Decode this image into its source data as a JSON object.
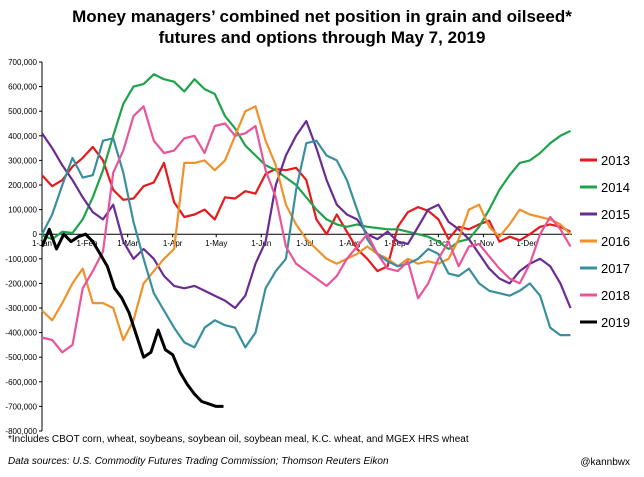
{
  "chart_data": {
    "type": "line",
    "title_lines": [
      "Money managers’ combined net position in grain and oilseed*",
      "futures and options through May 7, 2019"
    ],
    "footnote": "*Includes CBOT corn, wheat, soybeans, soybean oil, soybean meal, K.C. wheat, and MGEX HRS wheat",
    "sources": "Data sources: U.S. Commodity Futures Trading Commission; Thomson Reuters Eikon",
    "handle": "@kannbwx",
    "xlabel": "",
    "ylabel": "",
    "x_ticks": [
      "1-Jan",
      "1-Feb",
      "1-Mar",
      "1-Apr",
      "1-May",
      "1-Jun",
      "1-Jul",
      "1-Aug",
      "1-Sep",
      "1-Oct",
      "1-Nov",
      "1-Dec"
    ],
    "x_range": [
      0,
      365
    ],
    "y_ticks": [
      "700,000",
      "600,000",
      "500,000",
      "400,000",
      "300,000",
      "200,000",
      "100,000",
      "0",
      "-100,000",
      "-200,000",
      "-300,000",
      "-400,000",
      "-500,000",
      "-600,000",
      "-700,000",
      "-800,000"
    ],
    "ylim": [
      -800000,
      700000
    ],
    "legend_position": "right",
    "grid": false,
    "series": [
      {
        "name": "2013",
        "color": "#e41a1c",
        "x": [
          0,
          7,
          14,
          21,
          28,
          35,
          42,
          49,
          56,
          63,
          70,
          77,
          84,
          91,
          98,
          105,
          112,
          119,
          126,
          133,
          140,
          147,
          154,
          161,
          168,
          175,
          182,
          189,
          196,
          203,
          210,
          217,
          224,
          231,
          238,
          245,
          252,
          259,
          266,
          273,
          280,
          287,
          294,
          301,
          308,
          315,
          322,
          329,
          336,
          343,
          350,
          357,
          364
        ],
        "y": [
          240000,
          195000,
          220000,
          275000,
          310000,
          355000,
          300000,
          180000,
          140000,
          145000,
          195000,
          210000,
          290000,
          130000,
          70000,
          80000,
          100000,
          60000,
          150000,
          145000,
          175000,
          165000,
          245000,
          265000,
          260000,
          270000,
          220000,
          60000,
          0,
          80000,
          10000,
          -60000,
          -100000,
          -150000,
          -130000,
          30000,
          90000,
          110000,
          95000,
          60000,
          -20000,
          30000,
          20000,
          40000,
          55000,
          -30000,
          -10000,
          -25000,
          0,
          30000,
          40000,
          30000,
          10000
        ]
      },
      {
        "name": "2014",
        "color": "#1fa34a",
        "x": [
          0,
          7,
          14,
          21,
          28,
          35,
          42,
          49,
          56,
          63,
          70,
          77,
          84,
          91,
          98,
          105,
          112,
          119,
          126,
          133,
          140,
          147,
          154,
          161,
          168,
          175,
          182,
          189,
          196,
          203,
          210,
          217,
          224,
          231,
          238,
          245,
          252,
          259,
          266,
          273,
          280,
          287,
          294,
          301,
          308,
          315,
          322,
          329,
          336,
          343,
          350,
          357,
          364
        ],
        "y": [
          -5000,
          -20000,
          10000,
          5000,
          60000,
          150000,
          260000,
          400000,
          530000,
          600000,
          610000,
          650000,
          630000,
          620000,
          580000,
          630000,
          590000,
          570000,
          480000,
          430000,
          360000,
          320000,
          280000,
          260000,
          230000,
          200000,
          150000,
          100000,
          60000,
          40000,
          30000,
          40000,
          30000,
          25000,
          20000,
          20000,
          10000,
          0,
          -10000,
          -30000,
          -60000,
          -30000,
          -20000,
          30000,
          100000,
          180000,
          240000,
          290000,
          300000,
          330000,
          370000,
          400000,
          420000
        ]
      },
      {
        "name": "2015",
        "color": "#6a2c91",
        "x": [
          0,
          7,
          14,
          21,
          28,
          35,
          42,
          49,
          56,
          63,
          70,
          77,
          84,
          91,
          98,
          105,
          112,
          119,
          126,
          133,
          140,
          147,
          154,
          161,
          168,
          175,
          182,
          189,
          196,
          203,
          210,
          217,
          224,
          231,
          238,
          245,
          252,
          259,
          266,
          273,
          280,
          287,
          294,
          301,
          308,
          315,
          322,
          329,
          336,
          343,
          350,
          357,
          364
        ],
        "y": [
          410000,
          350000,
          280000,
          220000,
          150000,
          90000,
          60000,
          120000,
          -30000,
          -100000,
          -60000,
          -100000,
          -170000,
          -210000,
          -220000,
          -210000,
          -230000,
          -250000,
          -270000,
          -300000,
          -250000,
          -120000,
          -30000,
          200000,
          320000,
          400000,
          460000,
          350000,
          220000,
          120000,
          80000,
          60000,
          0,
          -20000,
          10000,
          -30000,
          -40000,
          30000,
          100000,
          120000,
          50000,
          20000,
          -20000,
          -80000,
          -140000,
          -180000,
          -200000,
          -150000,
          -120000,
          -100000,
          -130000,
          -200000,
          -300000
        ]
      },
      {
        "name": "2016",
        "color": "#f0922b",
        "x": [
          0,
          7,
          14,
          21,
          28,
          35,
          42,
          49,
          56,
          63,
          70,
          77,
          84,
          91,
          98,
          105,
          112,
          119,
          126,
          133,
          140,
          147,
          154,
          161,
          168,
          175,
          182,
          189,
          196,
          203,
          210,
          217,
          224,
          231,
          238,
          245,
          252,
          259,
          266,
          273,
          280,
          287,
          294,
          301,
          308,
          315,
          322,
          329,
          336,
          343,
          350,
          357,
          364
        ],
        "y": [
          -310000,
          -350000,
          -280000,
          -200000,
          -140000,
          -280000,
          -280000,
          -300000,
          -430000,
          -350000,
          -200000,
          -150000,
          -100000,
          -60000,
          290000,
          290000,
          300000,
          260000,
          300000,
          400000,
          500000,
          520000,
          380000,
          280000,
          120000,
          40000,
          -20000,
          -60000,
          -100000,
          -120000,
          -100000,
          -80000,
          -50000,
          -80000,
          -100000,
          -130000,
          -100000,
          -120000,
          -110000,
          -120000,
          -100000,
          -20000,
          100000,
          120000,
          30000,
          -10000,
          40000,
          100000,
          80000,
          70000,
          60000,
          40000,
          0
        ]
      },
      {
        "name": "2017",
        "color": "#3a8f9e",
        "x": [
          0,
          7,
          14,
          21,
          28,
          35,
          42,
          49,
          56,
          63,
          70,
          77,
          84,
          91,
          98,
          105,
          112,
          119,
          126,
          133,
          140,
          147,
          154,
          161,
          168,
          175,
          182,
          189,
          196,
          203,
          210,
          217,
          224,
          231,
          238,
          245,
          252,
          259,
          266,
          273,
          280,
          287,
          294,
          301,
          308,
          315,
          322,
          329,
          336,
          343,
          350,
          357,
          364
        ],
        "y": [
          0,
          80000,
          200000,
          310000,
          230000,
          240000,
          380000,
          390000,
          250000,
          50000,
          -100000,
          -240000,
          -310000,
          -380000,
          -440000,
          -460000,
          -380000,
          -350000,
          -370000,
          -380000,
          -460000,
          -400000,
          -220000,
          -150000,
          -100000,
          180000,
          370000,
          380000,
          320000,
          300000,
          220000,
          100000,
          -20000,
          -80000,
          -110000,
          -130000,
          -120000,
          -100000,
          -60000,
          -80000,
          -160000,
          -170000,
          -140000,
          -200000,
          -230000,
          -240000,
          -250000,
          -230000,
          -200000,
          -250000,
          -380000,
          -410000,
          -410000
        ]
      },
      {
        "name": "2018",
        "color": "#e8559a",
        "x": [
          0,
          7,
          14,
          21,
          28,
          35,
          42,
          49,
          56,
          63,
          70,
          77,
          84,
          91,
          98,
          105,
          112,
          119,
          126,
          133,
          140,
          147,
          154,
          161,
          168,
          175,
          182,
          189,
          196,
          203,
          210,
          217,
          224,
          231,
          238,
          245,
          252,
          259,
          266,
          273,
          280,
          287,
          294,
          301,
          308,
          315,
          322,
          329,
          336,
          343,
          350,
          357,
          364
        ],
        "y": [
          -420000,
          -430000,
          -480000,
          -450000,
          -220000,
          -150000,
          -70000,
          250000,
          340000,
          480000,
          520000,
          380000,
          330000,
          340000,
          390000,
          400000,
          330000,
          440000,
          450000,
          400000,
          410000,
          440000,
          260000,
          150000,
          -50000,
          -120000,
          -150000,
          -180000,
          -210000,
          -170000,
          -100000,
          -50000,
          0,
          -80000,
          -140000,
          -150000,
          -110000,
          -260000,
          -200000,
          -100000,
          -30000,
          -130000,
          -50000,
          -40000,
          -90000,
          -140000,
          -180000,
          -200000,
          -120000,
          0,
          70000,
          20000,
          -50000
        ]
      },
      {
        "name": "2019",
        "color": "#000000",
        "x": [
          0,
          5,
          10,
          15,
          20,
          25,
          30,
          35,
          40,
          45,
          50,
          55,
          60,
          65,
          70,
          75,
          80,
          85,
          90,
          95,
          100,
          105,
          110,
          115,
          120,
          125
        ],
        "y": [
          -50000,
          20000,
          -60000,
          0,
          -30000,
          -10000,
          0,
          -30000,
          -80000,
          -130000,
          -220000,
          -260000,
          -320000,
          -410000,
          -500000,
          -480000,
          -390000,
          -470000,
          -490000,
          -560000,
          -610000,
          -650000,
          -680000,
          -690000,
          -700000,
          -700000
        ]
      }
    ]
  }
}
